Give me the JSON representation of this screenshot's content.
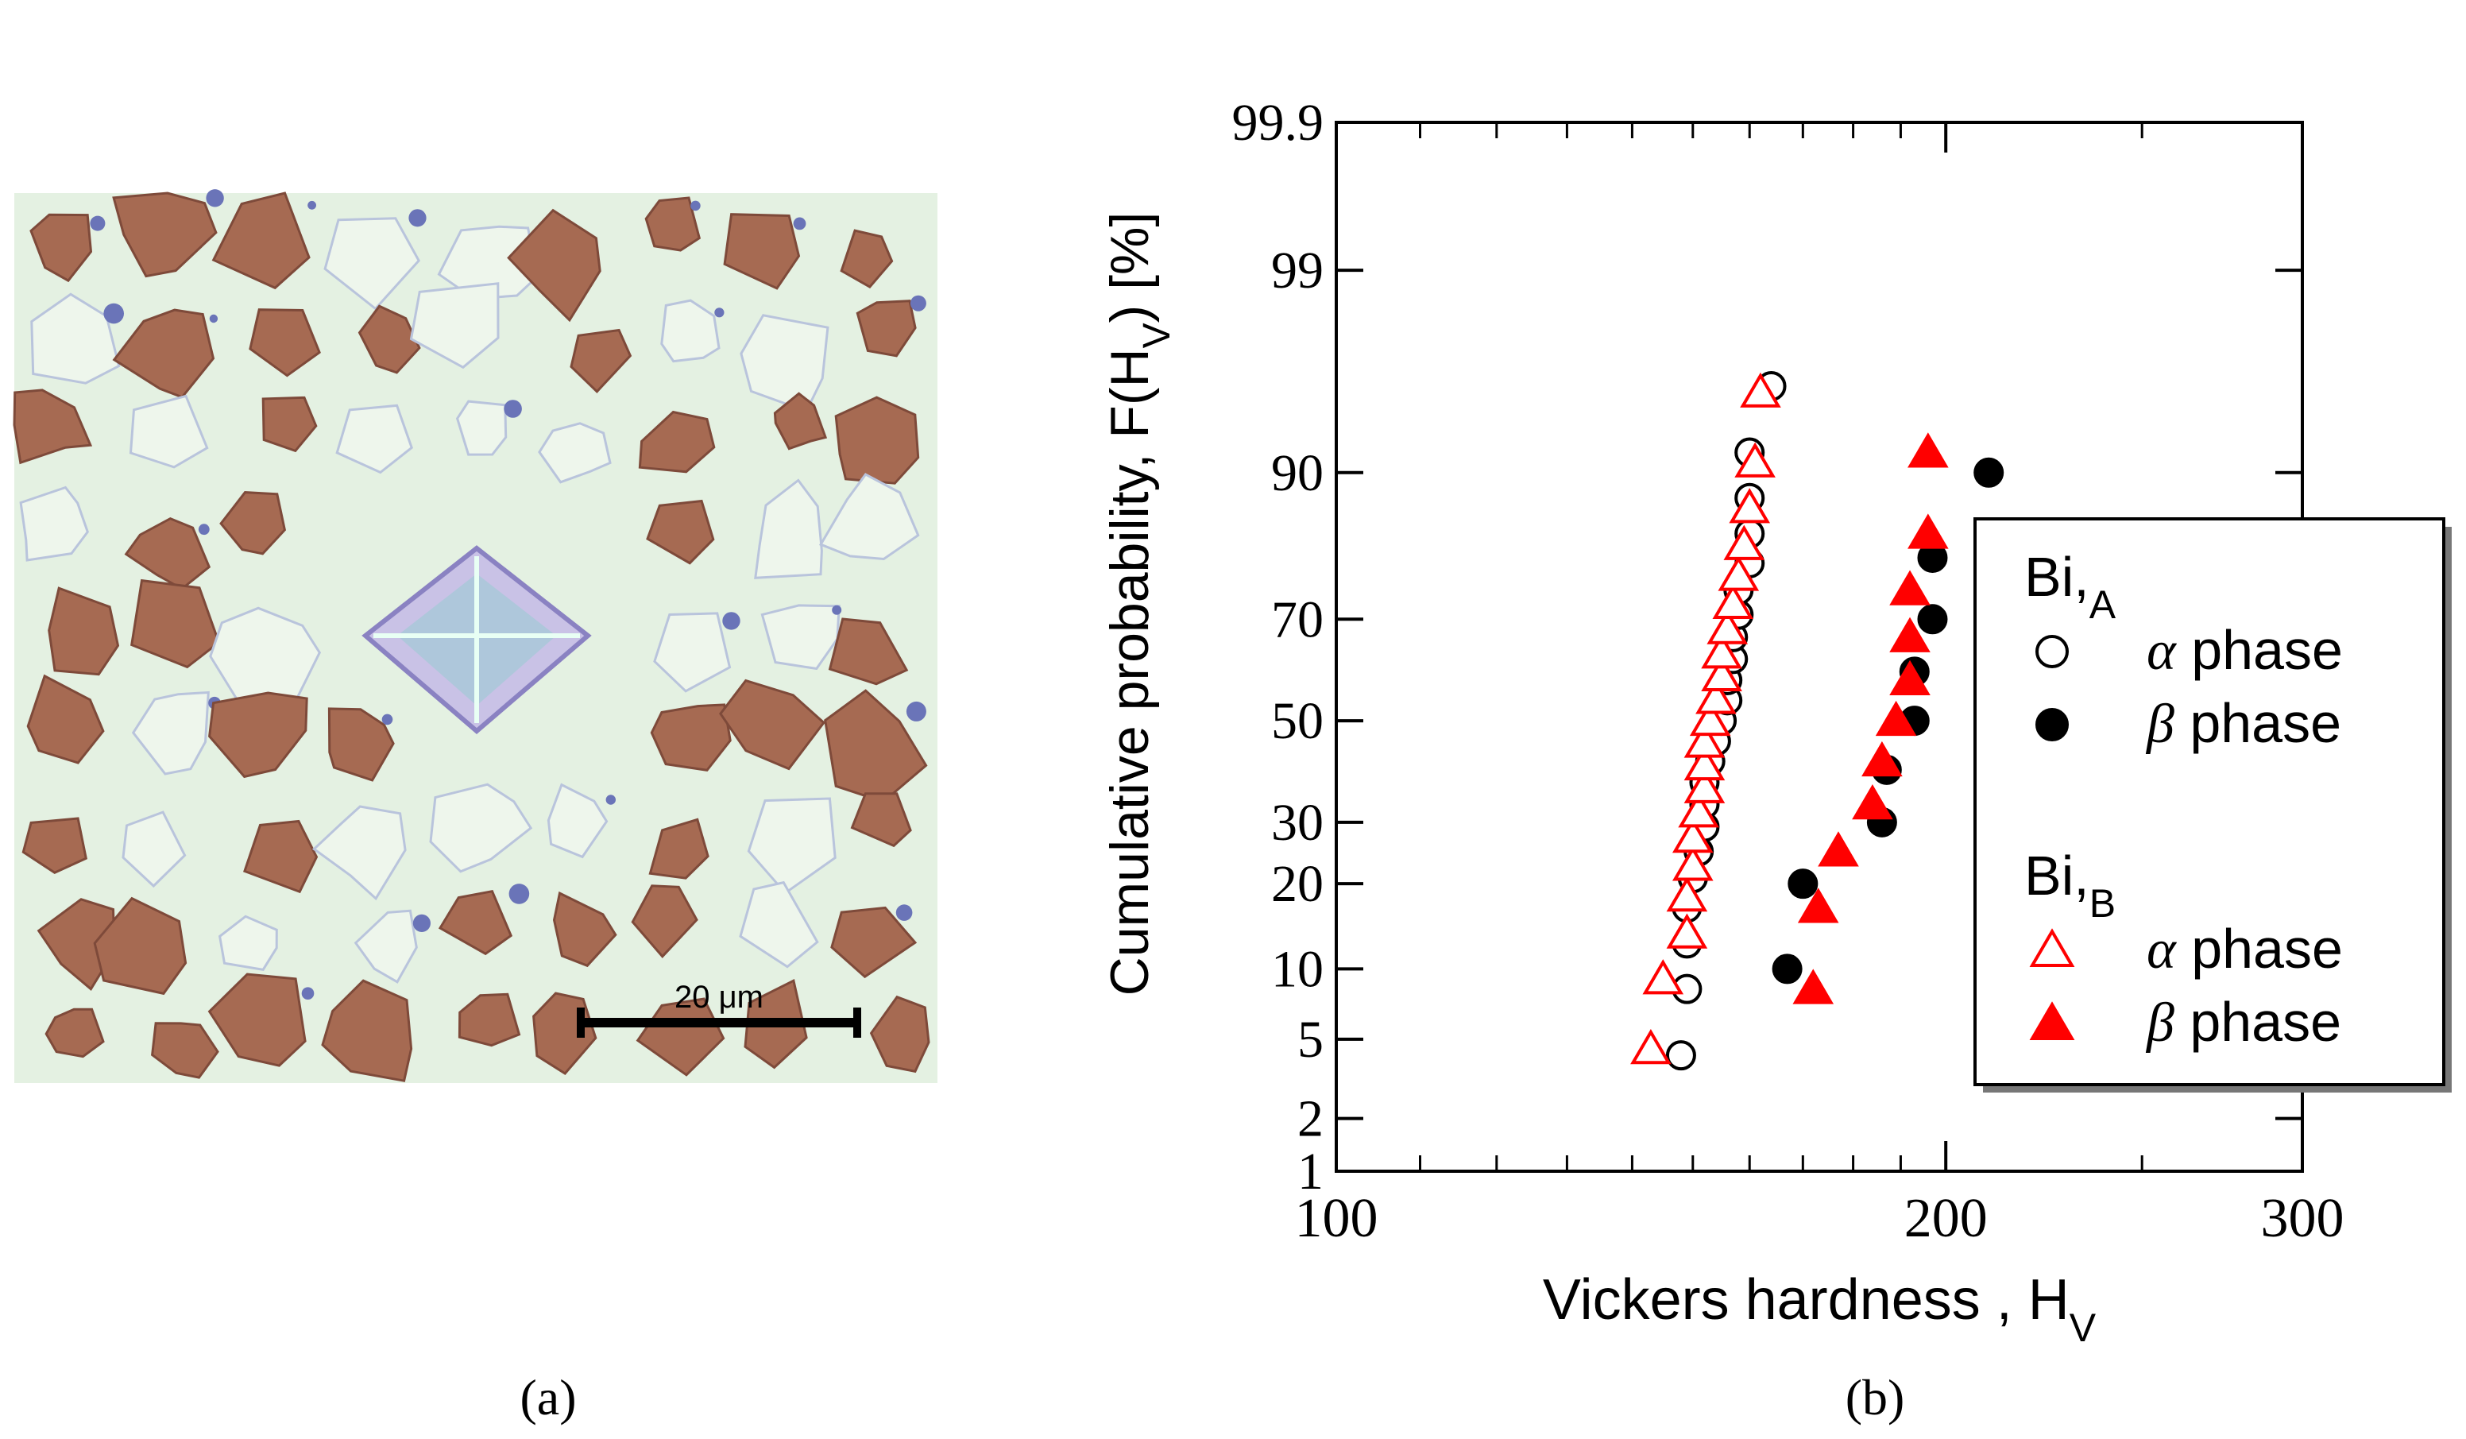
{
  "panel_a": {
    "label": "(a)",
    "scale_bar_label": "20 μm",
    "image_description_icon": "micrograph-icon",
    "colors": {
      "matrix": "#e6f2e4",
      "alpha_grain": "#a66a52",
      "beta_region": "#eef6ec",
      "inclusion": "#6a74b8"
    }
  },
  "panel_b": {
    "label": "(b)"
  },
  "chart_data": {
    "type": "scatter",
    "xscale": "log",
    "yscale": "probability",
    "xlim": [
      100,
      300
    ],
    "ylim_percent": [
      1,
      99.9
    ],
    "xlabel": "Vickers hardness , H",
    "xlabel_sub": "V",
    "ylabel": "Cumulative probability,  F(H",
    "ylabel_sub": "V",
    "ylabel_tail": ") [%]",
    "x_ticks": [
      100,
      200,
      300
    ],
    "y_ticks": [
      1,
      2,
      5,
      10,
      20,
      30,
      50,
      70,
      90,
      99,
      99.9
    ],
    "legend": {
      "position": "right",
      "groups": [
        {
          "title": "Bi,",
          "title_sub": "A",
          "entries": [
            {
              "symbol": "open-circle",
              "greek": "α",
              "text": " phase",
              "series": "A_alpha"
            },
            {
              "symbol": "filled-circle",
              "greek": "β",
              "text": " phase",
              "series": "A_beta"
            }
          ]
        },
        {
          "title": "Bi,",
          "title_sub": "B",
          "entries": [
            {
              "symbol": "open-triangle",
              "greek": "α",
              "text": " phase",
              "series": "B_alpha"
            },
            {
              "symbol": "filled-triangle",
              "greek": "β",
              "text": " phase",
              "series": "B_beta"
            }
          ]
        }
      ]
    },
    "series": [
      {
        "id": "A_alpha",
        "name": "Bi,A α phase",
        "marker": "circle",
        "filled": false,
        "color": "#000000",
        "points": [
          [
            148,
            4.2
          ],
          [
            149,
            8.3
          ],
          [
            149,
            12.5
          ],
          [
            149,
            16.7
          ],
          [
            150,
            20.8
          ],
          [
            151,
            25
          ],
          [
            152,
            29.2
          ],
          [
            152,
            33.3
          ],
          [
            152,
            37.5
          ],
          [
            153,
            41.7
          ],
          [
            154,
            45.8
          ],
          [
            155,
            50
          ],
          [
            156,
            54.2
          ],
          [
            156,
            58.3
          ],
          [
            157,
            62.5
          ],
          [
            157,
            66.7
          ],
          [
            158,
            70.8
          ],
          [
            158,
            75
          ],
          [
            160,
            79.2
          ],
          [
            160,
            83.3
          ],
          [
            160,
            87.5
          ],
          [
            160,
            91.7
          ],
          [
            164,
            95.8
          ]
        ]
      },
      {
        "id": "A_beta",
        "name": "Bi,A β phase",
        "marker": "circle",
        "filled": true,
        "color": "#000000",
        "points": [
          [
            167,
            10
          ],
          [
            170,
            20
          ],
          [
            186,
            30
          ],
          [
            187,
            40
          ],
          [
            193,
            50
          ],
          [
            193,
            60
          ],
          [
            197,
            70
          ],
          [
            197,
            80
          ],
          [
            210,
            90
          ]
        ]
      },
      {
        "id": "B_alpha",
        "name": "Bi,B α phase",
        "marker": "triangle",
        "filled": false,
        "color": "#ff0000",
        "points": [
          [
            143,
            4.5
          ],
          [
            145,
            9.1
          ],
          [
            149,
            13.6
          ],
          [
            149,
            18.2
          ],
          [
            150,
            22.7
          ],
          [
            150,
            27.3
          ],
          [
            151,
            31.8
          ],
          [
            152,
            36.4
          ],
          [
            152,
            40.9
          ],
          [
            152,
            45.5
          ],
          [
            153,
            50
          ],
          [
            154,
            54.5
          ],
          [
            155,
            59.1
          ],
          [
            155,
            63.6
          ],
          [
            156,
            68.2
          ],
          [
            157,
            72.7
          ],
          [
            158,
            77.3
          ],
          [
            159,
            81.8
          ],
          [
            160,
            86.4
          ],
          [
            161,
            90.9
          ],
          [
            162,
            95.5
          ]
        ]
      },
      {
        "id": "B_beta",
        "name": "Bi,B β phase",
        "marker": "triangle",
        "filled": true,
        "color": "#ff0000",
        "points": [
          [
            172,
            8.3
          ],
          [
            173,
            16.7
          ],
          [
            177,
            25
          ],
          [
            184,
            33.3
          ],
          [
            186,
            41.7
          ],
          [
            189,
            50
          ],
          [
            192,
            58.3
          ],
          [
            192,
            66.7
          ],
          [
            192,
            75
          ],
          [
            196,
            83.3
          ],
          [
            196,
            91.7
          ]
        ]
      }
    ]
  }
}
